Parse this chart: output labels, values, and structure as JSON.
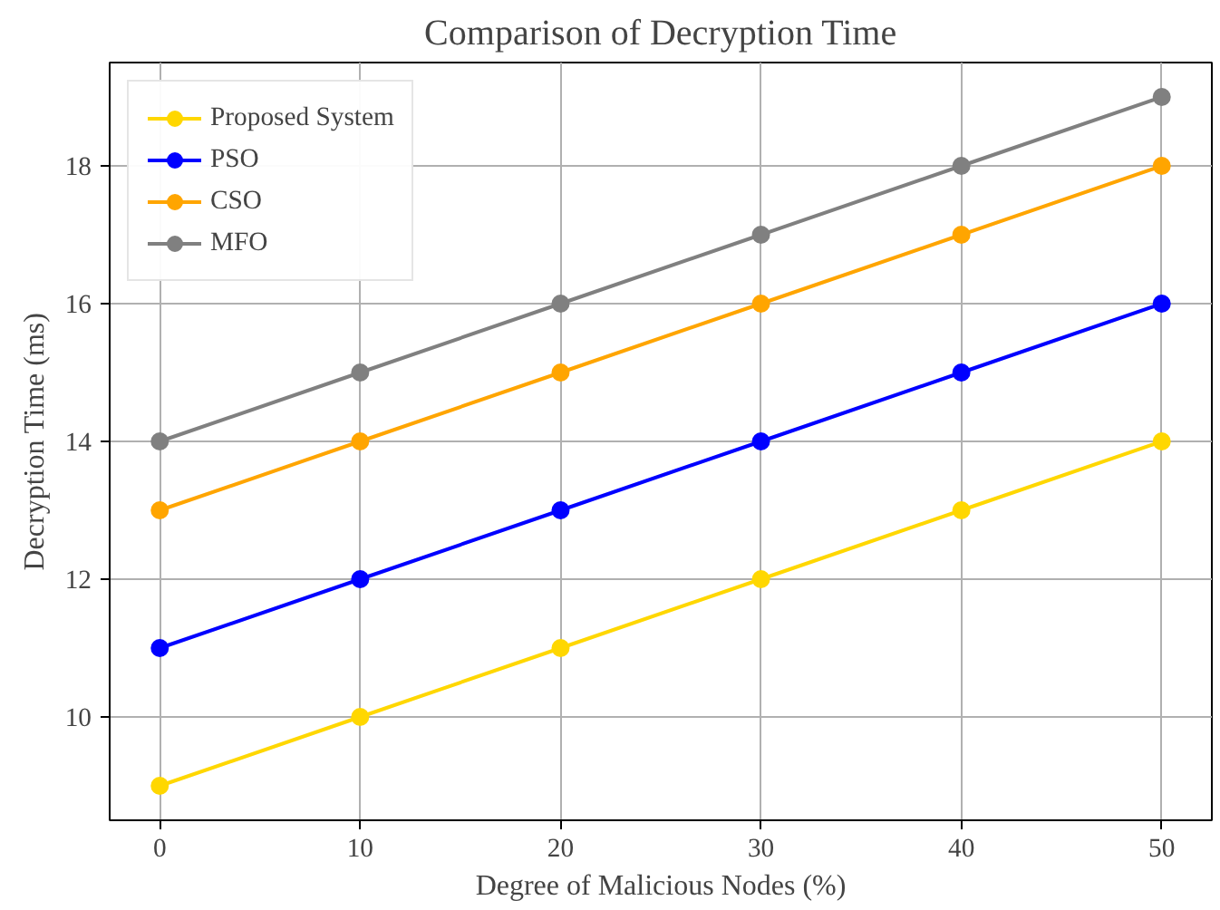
{
  "chart_data": {
    "type": "line",
    "title": "Comparison of Decryption Time",
    "xlabel": "Degree of Malicious Nodes (%)",
    "ylabel": "Decryption Time (ms)",
    "x": [
      0,
      10,
      20,
      30,
      40,
      50
    ],
    "series": [
      {
        "name": "Proposed System",
        "color": "#ffd700",
        "values": [
          9,
          10,
          11,
          12,
          13,
          14
        ]
      },
      {
        "name": "PSO",
        "color": "#0000ff",
        "values": [
          11,
          12,
          13,
          14,
          15,
          16
        ]
      },
      {
        "name": "CSO",
        "color": "#ffa500",
        "values": [
          13,
          14,
          15,
          16,
          17,
          18
        ]
      },
      {
        "name": "MFO",
        "color": "#808080",
        "values": [
          14,
          15,
          16,
          17,
          18,
          19
        ]
      }
    ],
    "xlim": [
      -2.5,
      52.5
    ],
    "ylim": [
      8.5,
      19.5
    ],
    "xticks": [
      0,
      10,
      20,
      30,
      40,
      50
    ],
    "yticks": [
      10,
      12,
      14,
      16,
      18
    ],
    "grid": true,
    "legend": "top left",
    "marker": "circle",
    "line_style": "solid"
  }
}
